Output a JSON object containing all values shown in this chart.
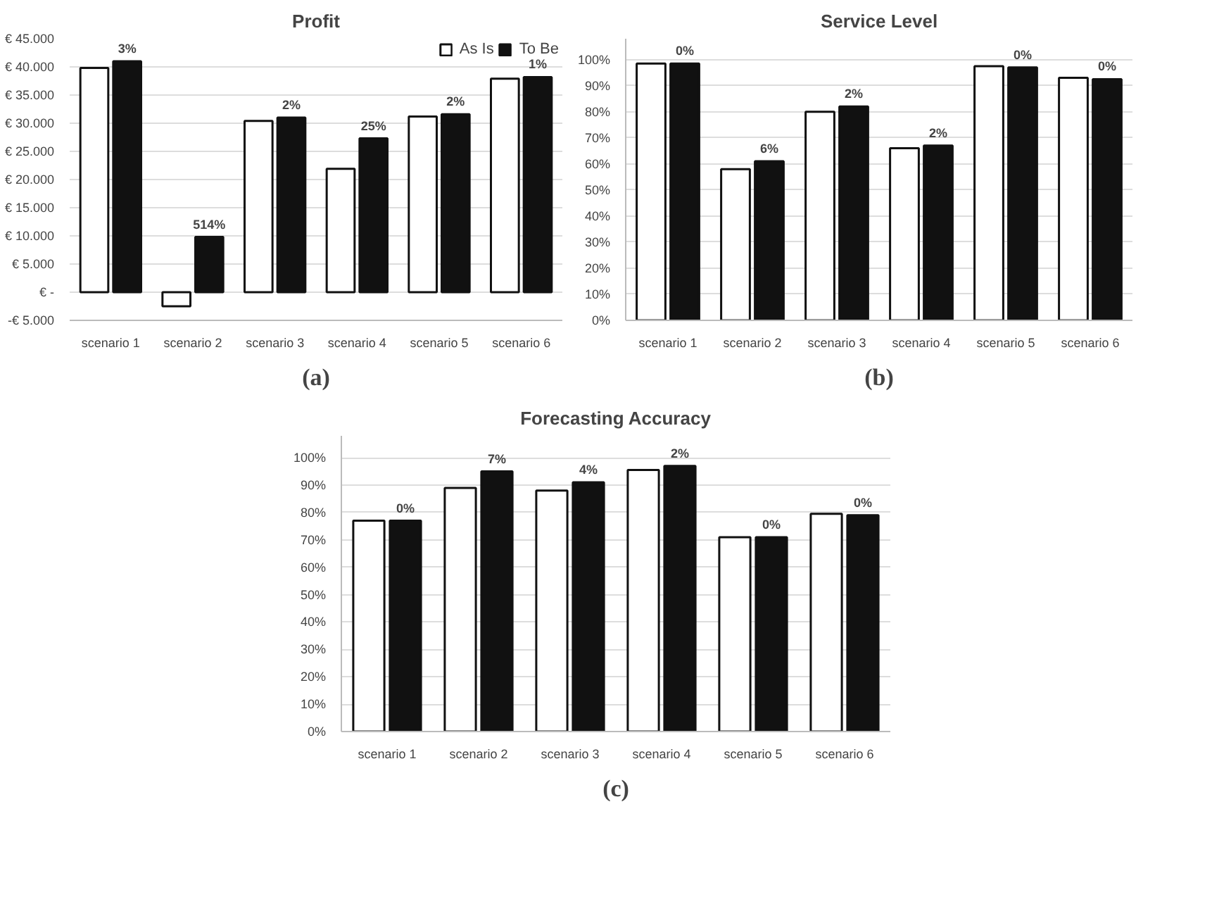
{
  "chart_data": [
    {
      "type": "bar",
      "title": "Profit",
      "categories": [
        "scenario 1",
        "scenario 2",
        "scenario 3",
        "scenario 4",
        "scenario 5",
        "scenario 6"
      ],
      "series": [
        {
          "name": "As Is",
          "color": "#ffffff",
          "values": [
            39800,
            -2500,
            30400,
            21900,
            31200,
            37900
          ]
        },
        {
          "name": "To Be",
          "color": "#111111",
          "values": [
            41000,
            9800,
            31000,
            27300,
            31600,
            38200
          ]
        }
      ],
      "ylim": [
        -5000,
        45000
      ],
      "yticks": [
        {
          "value": -5000,
          "label": "-€ 5.000"
        },
        {
          "value": 0,
          "label": "€ -"
        },
        {
          "value": 5000,
          "label": "€ 5.000"
        },
        {
          "value": 10000,
          "label": "€ 10.000"
        },
        {
          "value": 15000,
          "label": "€ 15.000"
        },
        {
          "value": 20000,
          "label": "€ 20.000"
        },
        {
          "value": 25000,
          "label": "€ 25.000"
        },
        {
          "value": 30000,
          "label": "€ 30.000"
        },
        {
          "value": 35000,
          "label": "€ 35.000"
        },
        {
          "value": 40000,
          "label": "€ 40.000"
        },
        {
          "value": 45000,
          "label": "€ 45.000"
        }
      ],
      "grid": "y",
      "legend": "top right",
      "annotations": [
        {
          "text": "3%",
          "x": "scenario 1",
          "y": 41000
        },
        {
          "text": "514%",
          "x": "scenario 2",
          "y": 9800
        },
        {
          "text": "2%",
          "x": "scenario 3",
          "y": 31000
        },
        {
          "text": "25%",
          "x": "scenario 4",
          "y": 27300
        },
        {
          "text": "2%",
          "x": "scenario 5",
          "y": 31600
        },
        {
          "text": "1%",
          "x": "scenario 6",
          "y": 38200
        },
        "(a)"
      ]
    },
    {
      "type": "bar",
      "title": "Service Level",
      "categories": [
        "scenario 1",
        "scenario 2",
        "scenario 3",
        "scenario 4",
        "scenario 5",
        "scenario 6"
      ],
      "series": [
        {
          "color": "#ffffff",
          "values": [
            98.5,
            58,
            80,
            66,
            97.5,
            93
          ]
        },
        {
          "color": "#111111",
          "values": [
            98.5,
            61,
            82,
            67,
            97,
            92.5
          ]
        }
      ],
      "ylim": [
        0,
        108
      ],
      "yticks": [
        {
          "value": 0,
          "label": "0%"
        },
        {
          "value": 10,
          "label": "10%"
        },
        {
          "value": 20,
          "label": "20%"
        },
        {
          "value": 30,
          "label": "30%"
        },
        {
          "value": 40,
          "label": "40%"
        },
        {
          "value": 50,
          "label": "50%"
        },
        {
          "value": 60,
          "label": "60%"
        },
        {
          "value": 70,
          "label": "70%"
        },
        {
          "value": 80,
          "label": "80%"
        },
        {
          "value": 90,
          "label": "90%"
        },
        {
          "value": 100,
          "label": "100%"
        }
      ],
      "grid": "y",
      "annotations": [
        {
          "text": "0%",
          "x": "scenario 1",
          "y": 98.5
        },
        {
          "text": "6%",
          "x": "scenario 2",
          "y": 61
        },
        {
          "text": "2%",
          "x": "scenario 3",
          "y": 82
        },
        {
          "text": "2%",
          "x": "scenario 4",
          "y": 67
        },
        {
          "text": "0%",
          "x": "scenario 5",
          "y": 97
        },
        {
          "text": "0%",
          "x": "scenario 6",
          "y": 92.5
        },
        "(b)"
      ]
    },
    {
      "type": "bar",
      "title": "Forecasting Accuracy",
      "categories": [
        "scenario 1",
        "scenario 2",
        "scenario 3",
        "scenario 4",
        "scenario 5",
        "scenario 6"
      ],
      "series": [
        {
          "color": "#ffffff",
          "values": [
            77,
            89,
            88,
            95.5,
            71,
            79.5
          ]
        },
        {
          "color": "#111111",
          "values": [
            77,
            95,
            91,
            97,
            71,
            79
          ]
        }
      ],
      "ylim": [
        0,
        108
      ],
      "yticks": [
        {
          "value": 0,
          "label": "0%"
        },
        {
          "value": 10,
          "label": "10%"
        },
        {
          "value": 20,
          "label": "20%"
        },
        {
          "value": 30,
          "label": "30%"
        },
        {
          "value": 40,
          "label": "40%"
        },
        {
          "value": 50,
          "label": "50%"
        },
        {
          "value": 60,
          "label": "60%"
        },
        {
          "value": 70,
          "label": "70%"
        },
        {
          "value": 80,
          "label": "80%"
        },
        {
          "value": 90,
          "label": "90%"
        },
        {
          "value": 100,
          "label": "100%"
        }
      ],
      "grid": "y",
      "annotations": [
        {
          "text": "0%",
          "x": "scenario 1",
          "y": 77
        },
        {
          "text": "7%",
          "x": "scenario 2",
          "y": 95
        },
        {
          "text": "4%",
          "x": "scenario 3",
          "y": 91
        },
        {
          "text": "2%",
          "x": "scenario 4",
          "y": 97
        },
        {
          "text": "0%",
          "x": "scenario 5",
          "y": 71
        },
        {
          "text": "0%",
          "x": "scenario 6",
          "y": 79
        },
        "(c)"
      ]
    }
  ]
}
